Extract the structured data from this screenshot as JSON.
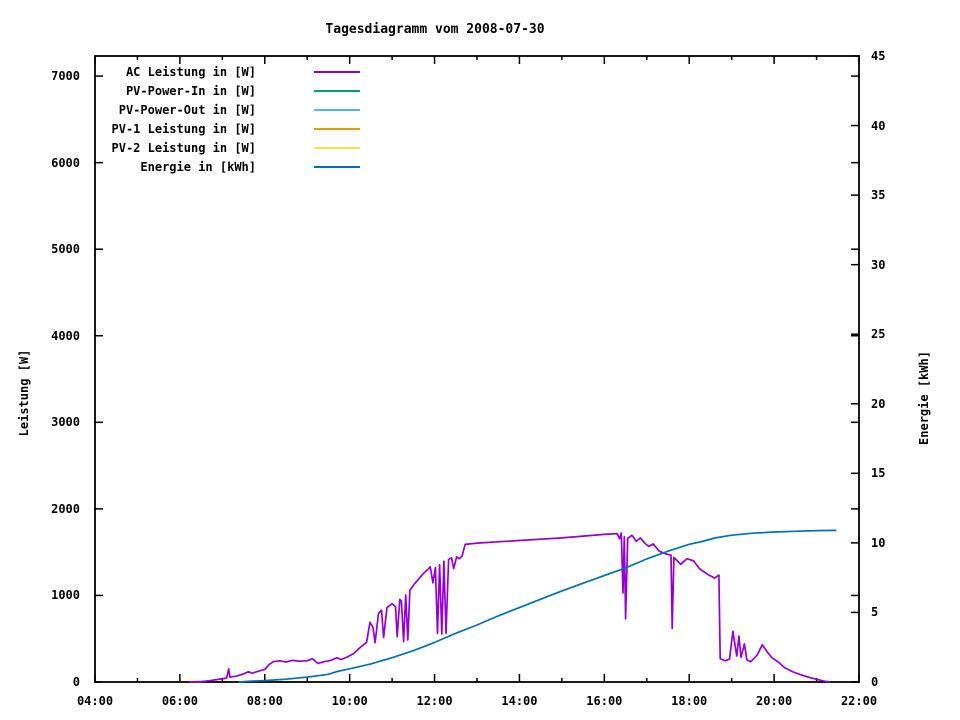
{
  "title": "Tagesdiagramm vom 2008-07-30",
  "chart_data": {
    "type": "line",
    "title": "Tagesdiagramm vom 2008-07-30",
    "grid": false,
    "legend_position": "top-left-inside",
    "x_axis": {
      "label": "",
      "range": [
        4,
        22
      ],
      "major_ticks": [
        {
          "v": 4,
          "label": "04:00"
        },
        {
          "v": 6,
          "label": "06:00"
        },
        {
          "v": 8,
          "label": "08:00"
        },
        {
          "v": 10,
          "label": "10:00"
        },
        {
          "v": 12,
          "label": "12:00"
        },
        {
          "v": 14,
          "label": "14:00"
        },
        {
          "v": 16,
          "label": "16:00"
        },
        {
          "v": 18,
          "label": "18:00"
        },
        {
          "v": 20,
          "label": "20:00"
        },
        {
          "v": 22,
          "label": "22:00"
        }
      ],
      "minor_ticks": [
        5,
        7,
        9,
        11,
        13,
        15,
        17,
        19,
        21
      ]
    },
    "y_axis": {
      "label": "Leistung [W]",
      "range": [
        0,
        7232
      ],
      "ticks": [
        0,
        1000,
        2000,
        3000,
        4000,
        5000,
        6000,
        7000
      ]
    },
    "y2_axis": {
      "label": "Energie [kWh]",
      "range": [
        0,
        45
      ],
      "ticks": [
        0,
        5,
        10,
        15,
        20,
        25,
        30,
        35,
        40,
        45
      ]
    },
    "legend": [
      {
        "label": "AC Leistung in [W]",
        "color": "#9400d3"
      },
      {
        "label": "PV-Power-In in [W]",
        "color": "#009e73"
      },
      {
        "label": "PV-Power-Out in [W]",
        "color": "#56b4e9"
      },
      {
        "label": "PV-1 Leistung in [W]",
        "color": "#e69f00"
      },
      {
        "label": "PV-2 Leistung in [W]",
        "color": "#f0e442"
      },
      {
        "label": "Energie in [kWh]",
        "color": "#0072b2"
      }
    ],
    "series": [
      {
        "name": "AC Leistung in [W]",
        "color": "#9400d3",
        "axis": "y",
        "visible_in_plot": true,
        "points": [
          [
            6.23,
            0
          ],
          [
            6.5,
            5
          ],
          [
            6.7,
            15
          ],
          [
            6.9,
            30
          ],
          [
            7.1,
            45
          ],
          [
            7.15,
            150
          ],
          [
            7.18,
            55
          ],
          [
            7.35,
            70
          ],
          [
            7.5,
            95
          ],
          [
            7.62,
            120
          ],
          [
            7.7,
            100
          ],
          [
            7.85,
            125
          ],
          [
            8.0,
            145
          ],
          [
            8.1,
            200
          ],
          [
            8.2,
            235
          ],
          [
            8.35,
            245
          ],
          [
            8.5,
            230
          ],
          [
            8.65,
            250
          ],
          [
            8.8,
            240
          ],
          [
            9.0,
            245
          ],
          [
            9.12,
            270
          ],
          [
            9.25,
            215
          ],
          [
            9.4,
            235
          ],
          [
            9.55,
            250
          ],
          [
            9.7,
            280
          ],
          [
            9.8,
            260
          ],
          [
            9.95,
            290
          ],
          [
            10.1,
            330
          ],
          [
            10.25,
            400
          ],
          [
            10.4,
            460
          ],
          [
            10.48,
            690
          ],
          [
            10.55,
            630
          ],
          [
            10.6,
            455
          ],
          [
            10.68,
            790
          ],
          [
            10.75,
            830
          ],
          [
            10.8,
            515
          ],
          [
            10.88,
            860
          ],
          [
            11.0,
            905
          ],
          [
            11.08,
            870
          ],
          [
            11.12,
            525
          ],
          [
            11.18,
            955
          ],
          [
            11.22,
            935
          ],
          [
            11.27,
            465
          ],
          [
            11.32,
            1005
          ],
          [
            11.37,
            485
          ],
          [
            11.42,
            1060
          ],
          [
            11.52,
            1130
          ],
          [
            11.62,
            1185
          ],
          [
            11.72,
            1245
          ],
          [
            11.82,
            1290
          ],
          [
            11.9,
            1330
          ],
          [
            11.96,
            1145
          ],
          [
            12.02,
            1320
          ],
          [
            12.07,
            565
          ],
          [
            12.12,
            1355
          ],
          [
            12.17,
            555
          ],
          [
            12.22,
            1395
          ],
          [
            12.27,
            560
          ],
          [
            12.33,
            1415
          ],
          [
            12.4,
            1435
          ],
          [
            12.45,
            1310
          ],
          [
            12.52,
            1445
          ],
          [
            12.58,
            1425
          ],
          [
            12.65,
            1455
          ],
          [
            12.72,
            1590
          ],
          [
            13.0,
            1605
          ],
          [
            13.5,
            1620
          ],
          [
            14.0,
            1635
          ],
          [
            14.5,
            1650
          ],
          [
            15.0,
            1665
          ],
          [
            15.5,
            1685
          ],
          [
            16.0,
            1705
          ],
          [
            16.3,
            1715
          ],
          [
            16.36,
            1655
          ],
          [
            16.4,
            1720
          ],
          [
            16.44,
            1030
          ],
          [
            16.47,
            1680
          ],
          [
            16.5,
            730
          ],
          [
            16.55,
            1660
          ],
          [
            16.65,
            1695
          ],
          [
            16.75,
            1625
          ],
          [
            16.85,
            1665
          ],
          [
            16.95,
            1605
          ],
          [
            17.05,
            1565
          ],
          [
            17.15,
            1595
          ],
          [
            17.3,
            1510
          ],
          [
            17.45,
            1480
          ],
          [
            17.57,
            1465
          ],
          [
            17.6,
            620
          ],
          [
            17.64,
            1440
          ],
          [
            17.8,
            1360
          ],
          [
            17.95,
            1425
          ],
          [
            18.1,
            1400
          ],
          [
            18.25,
            1305
          ],
          [
            18.45,
            1240
          ],
          [
            18.6,
            1200
          ],
          [
            18.7,
            1235
          ],
          [
            18.73,
            270
          ],
          [
            18.85,
            245
          ],
          [
            18.95,
            265
          ],
          [
            19.03,
            585
          ],
          [
            19.08,
            420
          ],
          [
            19.12,
            300
          ],
          [
            19.17,
            530
          ],
          [
            19.22,
            285
          ],
          [
            19.3,
            440
          ],
          [
            19.36,
            255
          ],
          [
            19.45,
            235
          ],
          [
            19.6,
            310
          ],
          [
            19.72,
            430
          ],
          [
            19.85,
            340
          ],
          [
            19.95,
            280
          ],
          [
            20.1,
            230
          ],
          [
            20.25,
            165
          ],
          [
            20.45,
            115
          ],
          [
            20.65,
            80
          ],
          [
            20.85,
            50
          ],
          [
            21.05,
            25
          ],
          [
            21.2,
            8
          ],
          [
            21.3,
            3
          ]
        ]
      },
      {
        "name": "PV-Power-In in [W]",
        "color": "#009e73",
        "axis": "y",
        "visible_in_plot": false,
        "points": []
      },
      {
        "name": "PV-Power-Out in [W]",
        "color": "#56b4e9",
        "axis": "y",
        "visible_in_plot": false,
        "points": []
      },
      {
        "name": "PV-1 Leistung in [W]",
        "color": "#e69f00",
        "axis": "y",
        "visible_in_plot": false,
        "points": []
      },
      {
        "name": "PV-2 Leistung in [W]",
        "color": "#f0e442",
        "axis": "y",
        "visible_in_plot": false,
        "points": []
      },
      {
        "name": "Energie in [kWh]",
        "color": "#0072b2",
        "axis": "y2",
        "visible_in_plot": true,
        "points": [
          [
            7.4,
            0
          ],
          [
            7.6,
            0.05
          ],
          [
            8.0,
            0.1
          ],
          [
            8.5,
            0.2
          ],
          [
            9.0,
            0.35
          ],
          [
            9.5,
            0.55
          ],
          [
            9.7,
            0.75
          ],
          [
            10.0,
            0.95
          ],
          [
            10.5,
            1.3
          ],
          [
            11.0,
            1.75
          ],
          [
            11.5,
            2.25
          ],
          [
            12.0,
            2.85
          ],
          [
            12.5,
            3.5
          ],
          [
            13.0,
            4.1
          ],
          [
            13.5,
            4.75
          ],
          [
            14.0,
            5.35
          ],
          [
            14.5,
            5.95
          ],
          [
            15.0,
            6.55
          ],
          [
            15.5,
            7.1
          ],
          [
            16.0,
            7.65
          ],
          [
            16.5,
            8.2
          ],
          [
            17.0,
            8.85
          ],
          [
            17.5,
            9.4
          ],
          [
            18.0,
            9.9
          ],
          [
            18.3,
            10.1
          ],
          [
            18.6,
            10.35
          ],
          [
            19.0,
            10.55
          ],
          [
            19.5,
            10.7
          ],
          [
            20.0,
            10.78
          ],
          [
            20.5,
            10.83
          ],
          [
            21.0,
            10.88
          ],
          [
            21.45,
            10.9
          ]
        ]
      }
    ]
  }
}
